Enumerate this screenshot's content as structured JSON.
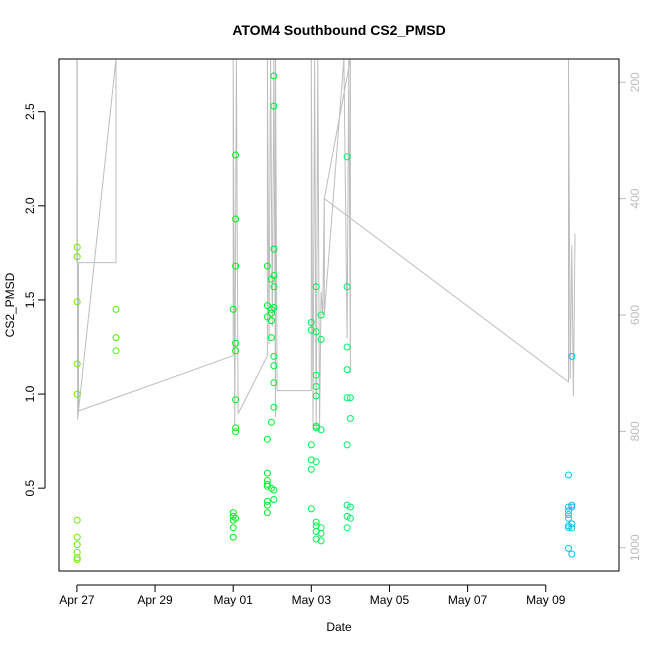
{
  "chart_data": {
    "type": "scatter",
    "title": "ATOM4 Southbound CS2_PMSD",
    "xlabel": "Date",
    "ylabel": "CS2_PMSD",
    "x_axis": {
      "type": "date",
      "range": [
        "2024-04-26T13:00",
        "2024-05-10T21:00"
      ],
      "tick_values": [
        "2024-04-27",
        "2024-04-29",
        "2024-05-01",
        "2024-05-03",
        "2024-05-05",
        "2024-05-07",
        "2024-05-09"
      ],
      "tick_labels": [
        "Apr 27",
        "Apr 29",
        "May 01",
        "May 03",
        "May 05",
        "May 07",
        "May 09"
      ]
    },
    "y_axis": {
      "range": [
        0.06,
        2.78
      ],
      "ticks": [
        0.5,
        1.0,
        1.5,
        2.0,
        2.5
      ],
      "tick_labels": [
        "0.5",
        "1.0",
        "1.5",
        "2.0",
        "2.5"
      ]
    },
    "secondary_y_axis": {
      "range": [
        1040,
        160
      ],
      "reversed": true,
      "ticks": [
        200,
        400,
        600,
        800,
        1000
      ],
      "tick_labels": [
        "200",
        "400",
        "600",
        "800",
        "1000"
      ],
      "color": "#bdbdbd"
    },
    "grid": false,
    "legend": "none",
    "colors": {
      "points": "color gradient from green to blue over time",
      "line": "#bdbdbd"
    },
    "points": [
      {
        "t": "2024-04-27T00:10",
        "y": 1.78
      },
      {
        "t": "2024-04-27T00:10",
        "y": 1.73
      },
      {
        "t": "2024-04-27T00:10",
        "y": 1.49
      },
      {
        "t": "2024-04-27T00:10",
        "y": 1.16
      },
      {
        "t": "2024-04-27T00:10",
        "y": 1.0
      },
      {
        "t": "2024-04-27T00:10",
        "y": 0.33
      },
      {
        "t": "2024-04-27T00:10",
        "y": 0.24
      },
      {
        "t": "2024-04-27T00:10",
        "y": 0.2
      },
      {
        "t": "2024-04-27T00:10",
        "y": 0.16
      },
      {
        "t": "2024-04-27T00:10",
        "y": 0.13
      },
      {
        "t": "2024-04-27T00:10",
        "y": 0.12
      },
      {
        "t": "2024-04-28T00:00",
        "y": 1.45
      },
      {
        "t": "2024-04-28T00:00",
        "y": 1.3
      },
      {
        "t": "2024-04-28T00:00",
        "y": 1.23
      },
      {
        "t": "2024-05-01T00:00",
        "y": 1.45
      },
      {
        "t": "2024-05-01T00:00",
        "y": 0.37
      },
      {
        "t": "2024-05-01T00:00",
        "y": 0.35
      },
      {
        "t": "2024-05-01T00:00",
        "y": 0.33
      },
      {
        "t": "2024-05-01T00:00",
        "y": 0.29
      },
      {
        "t": "2024-05-01T00:00",
        "y": 0.24
      },
      {
        "t": "2024-05-01T01:30",
        "y": 2.27
      },
      {
        "t": "2024-05-01T01:30",
        "y": 1.93
      },
      {
        "t": "2024-05-01T01:30",
        "y": 1.68
      },
      {
        "t": "2024-05-01T01:30",
        "y": 1.27
      },
      {
        "t": "2024-05-01T01:30",
        "y": 1.23
      },
      {
        "t": "2024-05-01T01:30",
        "y": 0.97
      },
      {
        "t": "2024-05-01T01:30",
        "y": 0.82
      },
      {
        "t": "2024-05-01T01:30",
        "y": 0.8
      },
      {
        "t": "2024-05-01T01:30",
        "y": 0.34
      },
      {
        "t": "2024-05-01T21:00",
        "y": 1.68
      },
      {
        "t": "2024-05-01T21:00",
        "y": 1.47
      },
      {
        "t": "2024-05-01T21:00",
        "y": 1.41
      },
      {
        "t": "2024-05-01T21:00",
        "y": 0.76
      },
      {
        "t": "2024-05-01T21:00",
        "y": 0.58
      },
      {
        "t": "2024-05-01T21:00",
        "y": 0.54
      },
      {
        "t": "2024-05-01T21:00",
        "y": 0.52
      },
      {
        "t": "2024-05-01T21:00",
        "y": 0.51
      },
      {
        "t": "2024-05-01T21:00",
        "y": 0.43
      },
      {
        "t": "2024-05-01T21:00",
        "y": 0.41
      },
      {
        "t": "2024-05-01T21:00",
        "y": 0.37
      },
      {
        "t": "2024-05-01T23:30",
        "y": 1.61
      },
      {
        "t": "2024-05-01T23:30",
        "y": 1.45
      },
      {
        "t": "2024-05-01T23:30",
        "y": 1.43
      },
      {
        "t": "2024-05-01T23:30",
        "y": 1.39
      },
      {
        "t": "2024-05-01T23:30",
        "y": 1.3
      },
      {
        "t": "2024-05-01T23:30",
        "y": 0.85
      },
      {
        "t": "2024-05-01T23:30",
        "y": 0.5
      },
      {
        "t": "2024-05-02T01:00",
        "y": 2.69
      },
      {
        "t": "2024-05-02T01:00",
        "y": 2.53
      },
      {
        "t": "2024-05-02T01:00",
        "y": 1.77
      },
      {
        "t": "2024-05-02T01:00",
        "y": 1.63
      },
      {
        "t": "2024-05-02T01:00",
        "y": 1.57
      },
      {
        "t": "2024-05-02T01:00",
        "y": 1.46
      },
      {
        "t": "2024-05-02T01:00",
        "y": 1.2
      },
      {
        "t": "2024-05-02T01:00",
        "y": 1.15
      },
      {
        "t": "2024-05-02T01:00",
        "y": 1.06
      },
      {
        "t": "2024-05-02T01:00",
        "y": 0.93
      },
      {
        "t": "2024-05-02T01:00",
        "y": 0.49
      },
      {
        "t": "2024-05-02T01:00",
        "y": 0.44
      },
      {
        "t": "2024-05-03T00:00",
        "y": 1.38
      },
      {
        "t": "2024-05-03T00:00",
        "y": 1.34
      },
      {
        "t": "2024-05-03T00:00",
        "y": 0.73
      },
      {
        "t": "2024-05-03T00:00",
        "y": 0.65
      },
      {
        "t": "2024-05-03T00:00",
        "y": 0.6
      },
      {
        "t": "2024-05-03T00:00",
        "y": 0.39
      },
      {
        "t": "2024-05-03T03:00",
        "y": 1.57
      },
      {
        "t": "2024-05-03T03:00",
        "y": 1.33
      },
      {
        "t": "2024-05-03T03:00",
        "y": 1.1
      },
      {
        "t": "2024-05-03T03:00",
        "y": 1.04
      },
      {
        "t": "2024-05-03T03:00",
        "y": 0.99
      },
      {
        "t": "2024-05-03T03:00",
        "y": 0.83
      },
      {
        "t": "2024-05-03T03:00",
        "y": 0.82
      },
      {
        "t": "2024-05-03T03:00",
        "y": 0.64
      },
      {
        "t": "2024-05-03T03:00",
        "y": 0.32
      },
      {
        "t": "2024-05-03T03:00",
        "y": 0.3
      },
      {
        "t": "2024-05-03T03:00",
        "y": 0.27
      },
      {
        "t": "2024-05-03T03:00",
        "y": 0.23
      },
      {
        "t": "2024-05-03T06:00",
        "y": 1.42
      },
      {
        "t": "2024-05-03T06:00",
        "y": 1.29
      },
      {
        "t": "2024-05-03T06:00",
        "y": 0.81
      },
      {
        "t": "2024-05-03T06:00",
        "y": 0.29
      },
      {
        "t": "2024-05-03T06:00",
        "y": 0.26
      },
      {
        "t": "2024-05-03T06:00",
        "y": 0.22
      },
      {
        "t": "2024-05-03T22:00",
        "y": 2.26
      },
      {
        "t": "2024-05-03T22:00",
        "y": 1.57
      },
      {
        "t": "2024-05-03T22:00",
        "y": 1.25
      },
      {
        "t": "2024-05-03T22:00",
        "y": 1.13
      },
      {
        "t": "2024-05-03T22:00",
        "y": 0.98
      },
      {
        "t": "2024-05-03T22:00",
        "y": 0.73
      },
      {
        "t": "2024-05-03T22:00",
        "y": 0.41
      },
      {
        "t": "2024-05-03T22:00",
        "y": 0.35
      },
      {
        "t": "2024-05-03T22:00",
        "y": 0.29
      },
      {
        "t": "2024-05-04T00:00",
        "y": 0.98
      },
      {
        "t": "2024-05-04T00:00",
        "y": 0.87
      },
      {
        "t": "2024-05-04T00:00",
        "y": 0.4
      },
      {
        "t": "2024-05-04T00:00",
        "y": 0.34
      },
      {
        "t": "2024-05-09T14:00",
        "y": 0.57
      },
      {
        "t": "2024-05-09T14:00",
        "y": 0.4
      },
      {
        "t": "2024-05-09T14:00",
        "y": 0.38
      },
      {
        "t": "2024-05-09T14:00",
        "y": 0.36
      },
      {
        "t": "2024-05-09T14:00",
        "y": 0.34
      },
      {
        "t": "2024-05-09T14:00",
        "y": 0.3
      },
      {
        "t": "2024-05-09T14:00",
        "y": 0.29
      },
      {
        "t": "2024-05-09T14:00",
        "y": 0.18
      },
      {
        "t": "2024-05-09T16:00",
        "y": 1.2
      },
      {
        "t": "2024-05-09T16:00",
        "y": 0.41
      },
      {
        "t": "2024-05-09T16:00",
        "y": 0.4
      },
      {
        "t": "2024-05-09T16:00",
        "y": 0.31
      },
      {
        "t": "2024-05-09T16:00",
        "y": 0.29
      },
      {
        "t": "2024-05-09T16:00",
        "y": 0.15
      }
    ],
    "line_series": [
      {
        "t": "2024-04-26T23:10",
        "v": 160
      },
      {
        "t": "2024-04-27T00:00",
        "v": 160
      },
      {
        "t": "2024-04-27T00:00",
        "v": 510
      },
      {
        "t": "2024-04-27T00:10",
        "v": 160
      },
      {
        "t": "2024-04-27T00:20",
        "v": 510
      },
      {
        "t": "2024-04-27T00:30",
        "v": 780
      },
      {
        "t": "2024-04-27T01:00",
        "v": 765
      },
      {
        "t": "2024-04-27T01:00",
        "v": 510
      },
      {
        "t": "2024-04-28T00:00",
        "v": 510
      },
      {
        "t": "2024-04-28T00:00",
        "v": 160
      },
      {
        "t": "2024-04-28T00:00",
        "v": 160
      },
      {
        "t": "2024-04-27T01:00",
        "v": 765
      },
      {
        "t": "2024-05-01T00:00",
        "v": 670
      },
      {
        "t": "2024-05-01T00:00",
        "v": 160
      },
      {
        "t": "2024-05-01T01:00",
        "v": 790
      },
      {
        "t": "2024-05-01T02:00",
        "v": 160
      },
      {
        "t": "2024-05-01T03:00",
        "v": 770
      },
      {
        "t": "2024-05-01T03:00",
        "v": 730
      },
      {
        "t": "2024-05-01T03:00",
        "v": 770
      },
      {
        "t": "2024-05-01T21:00",
        "v": 670
      },
      {
        "t": "2024-05-01T21:00",
        "v": 160
      },
      {
        "t": "2024-05-01T22:00",
        "v": 650
      },
      {
        "t": "2024-05-01T23:00",
        "v": 160
      },
      {
        "t": "2024-05-02T00:00",
        "v": 620
      },
      {
        "t": "2024-05-02T01:00",
        "v": 160
      },
      {
        "t": "2024-05-02T02:00",
        "v": 775
      },
      {
        "t": "2024-05-02T02:00",
        "v": 160
      },
      {
        "t": "2024-05-02T03:00",
        "v": 730
      },
      {
        "t": "2024-05-03T00:00",
        "v": 730
      },
      {
        "t": "2024-05-03T00:00",
        "v": 160
      },
      {
        "t": "2024-05-03T01:00",
        "v": 790
      },
      {
        "t": "2024-05-03T02:00",
        "v": 160
      },
      {
        "t": "2024-05-03T03:00",
        "v": 800
      },
      {
        "t": "2024-05-03T04:00",
        "v": 160
      },
      {
        "t": "2024-05-03T05:00",
        "v": 800
      },
      {
        "t": "2024-05-03T06:00",
        "v": 560
      },
      {
        "t": "2024-05-03T07:00",
        "v": 600
      },
      {
        "t": "2024-05-03T08:00",
        "v": 400
      },
      {
        "t": "2024-05-03T08:00",
        "v": 600
      },
      {
        "t": "2024-05-03T20:00",
        "v": 160
      },
      {
        "t": "2024-05-03T22:00",
        "v": 640
      },
      {
        "t": "2024-05-03T23:00",
        "v": 160
      },
      {
        "t": "2024-05-04T00:00",
        "v": 700
      },
      {
        "t": "2024-05-04T00:00",
        "v": 160
      },
      {
        "t": "2024-05-03T08:00",
        "v": 400
      },
      {
        "t": "2024-05-09T14:00",
        "v": 715
      },
      {
        "t": "2024-05-09T14:00",
        "v": 160
      },
      {
        "t": "2024-05-09T15:00",
        "v": 710
      },
      {
        "t": "2024-05-09T16:00",
        "v": 480
      },
      {
        "t": "2024-05-09T17:00",
        "v": 740
      },
      {
        "t": "2024-05-09T18:00",
        "v": 460
      }
    ]
  }
}
